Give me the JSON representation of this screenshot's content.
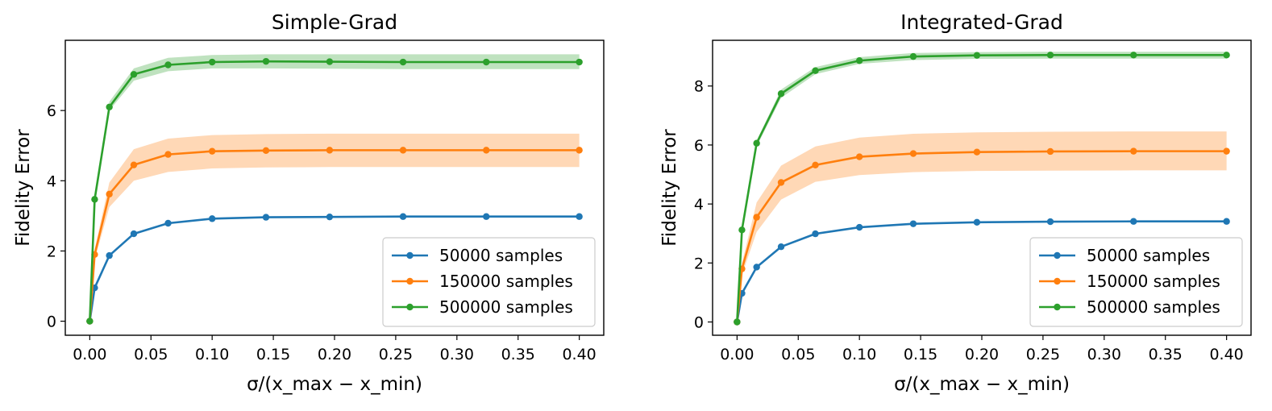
{
  "chart_data": [
    {
      "type": "line",
      "title": "Simple-Grad",
      "xlabel": "σ/(x_max − x_min)",
      "ylabel": "Fidelity Error",
      "xlim": [
        -0.02,
        0.42
      ],
      "ylim": [
        -0.4,
        8.0
      ],
      "xticks": [
        0.0,
        0.05,
        0.1,
        0.15,
        0.2,
        0.25,
        0.3,
        0.35,
        0.4
      ],
      "xtick_labels": [
        "0.00",
        "0.05",
        "0.10",
        "0.15",
        "0.20",
        "0.25",
        "0.30",
        "0.35",
        "0.40"
      ],
      "yticks": [
        0,
        2,
        4,
        6
      ],
      "ytick_labels": [
        "0",
        "2",
        "4",
        "6"
      ],
      "legend_position": "lower-right",
      "x": [
        0.0,
        0.004,
        0.016,
        0.036,
        0.064,
        0.1,
        0.144,
        0.196,
        0.256,
        0.324,
        0.4
      ],
      "series": [
        {
          "name": "50000 samples",
          "color": "#1f77b4",
          "values": [
            0.0,
            0.95,
            1.87,
            2.49,
            2.79,
            2.92,
            2.96,
            2.97,
            2.98,
            2.98,
            2.98
          ],
          "band": null
        },
        {
          "name": "150000 samples",
          "color": "#ff7f0e",
          "values": [
            0.0,
            1.9,
            3.62,
            4.45,
            4.75,
            4.84,
            4.86,
            4.87,
            4.87,
            4.87,
            4.87
          ],
          "band": [
            [
              0.0,
              0.0
            ],
            [
              1.75,
              2.05
            ],
            [
              3.25,
              3.95
            ],
            [
              4.0,
              4.9
            ],
            [
              4.25,
              5.2
            ],
            [
              4.35,
              5.3
            ],
            [
              4.38,
              5.33
            ],
            [
              4.39,
              5.34
            ],
            [
              4.39,
              5.34
            ],
            [
              4.39,
              5.34
            ],
            [
              4.39,
              5.34
            ]
          ]
        },
        {
          "name": "500000 samples",
          "color": "#2ca02c",
          "values": [
            0.0,
            3.47,
            6.1,
            7.03,
            7.3,
            7.38,
            7.4,
            7.39,
            7.38,
            7.38,
            7.38
          ],
          "band": [
            [
              0.0,
              0.0
            ],
            [
              3.4,
              3.55
            ],
            [
              6.0,
              6.25
            ],
            [
              6.85,
              7.2
            ],
            [
              7.12,
              7.5
            ],
            [
              7.2,
              7.58
            ],
            [
              7.2,
              7.6
            ],
            [
              7.19,
              7.6
            ],
            [
              7.18,
              7.6
            ],
            [
              7.18,
              7.6
            ],
            [
              7.18,
              7.6
            ]
          ]
        }
      ]
    },
    {
      "type": "line",
      "title": "Integrated-Grad",
      "xlabel": "σ/(x_max − x_min)",
      "ylabel": "Fidelity Error",
      "xlim": [
        -0.02,
        0.42
      ],
      "ylim": [
        -0.45,
        9.55
      ],
      "xticks": [
        0.0,
        0.05,
        0.1,
        0.15,
        0.2,
        0.25,
        0.3,
        0.35,
        0.4
      ],
      "xtick_labels": [
        "0.00",
        "0.05",
        "0.10",
        "0.15",
        "0.20",
        "0.25",
        "0.30",
        "0.35",
        "0.40"
      ],
      "yticks": [
        0,
        2,
        4,
        6,
        8
      ],
      "ytick_labels": [
        "0",
        "2",
        "4",
        "6",
        "8"
      ],
      "legend_position": "lower-right",
      "x": [
        0.0,
        0.004,
        0.016,
        0.036,
        0.064,
        0.1,
        0.144,
        0.196,
        0.256,
        0.324,
        0.4
      ],
      "series": [
        {
          "name": "50000 samples",
          "color": "#1f77b4",
          "values": [
            0.0,
            0.97,
            1.86,
            2.55,
            2.99,
            3.21,
            3.33,
            3.38,
            3.4,
            3.41,
            3.41
          ],
          "band": null
        },
        {
          "name": "150000 samples",
          "color": "#ff7f0e",
          "values": [
            0.0,
            1.8,
            3.55,
            4.73,
            5.32,
            5.6,
            5.71,
            5.76,
            5.78,
            5.79,
            5.79
          ],
          "band": [
            [
              0.0,
              0.0
            ],
            [
              1.6,
              2.0
            ],
            [
              3.05,
              4.05
            ],
            [
              4.15,
              5.3
            ],
            [
              4.75,
              5.95
            ],
            [
              4.98,
              6.25
            ],
            [
              5.08,
              6.38
            ],
            [
              5.12,
              6.43
            ],
            [
              5.13,
              6.45
            ],
            [
              5.14,
              6.46
            ],
            [
              5.14,
              6.46
            ]
          ]
        },
        {
          "name": "500000 samples",
          "color": "#2ca02c",
          "values": [
            0.0,
            3.12,
            6.06,
            7.74,
            8.52,
            8.86,
            9.0,
            9.04,
            9.05,
            9.05,
            9.05
          ],
          "band": [
            [
              0.0,
              0.0
            ],
            [
              3.05,
              3.2
            ],
            [
              5.95,
              6.15
            ],
            [
              7.6,
              7.88
            ],
            [
              8.4,
              8.64
            ],
            [
              8.75,
              8.98
            ],
            [
              8.88,
              9.12
            ],
            [
              8.92,
              9.15
            ],
            [
              8.93,
              9.16
            ],
            [
              8.93,
              9.16
            ],
            [
              8.93,
              9.16
            ]
          ]
        }
      ]
    }
  ]
}
